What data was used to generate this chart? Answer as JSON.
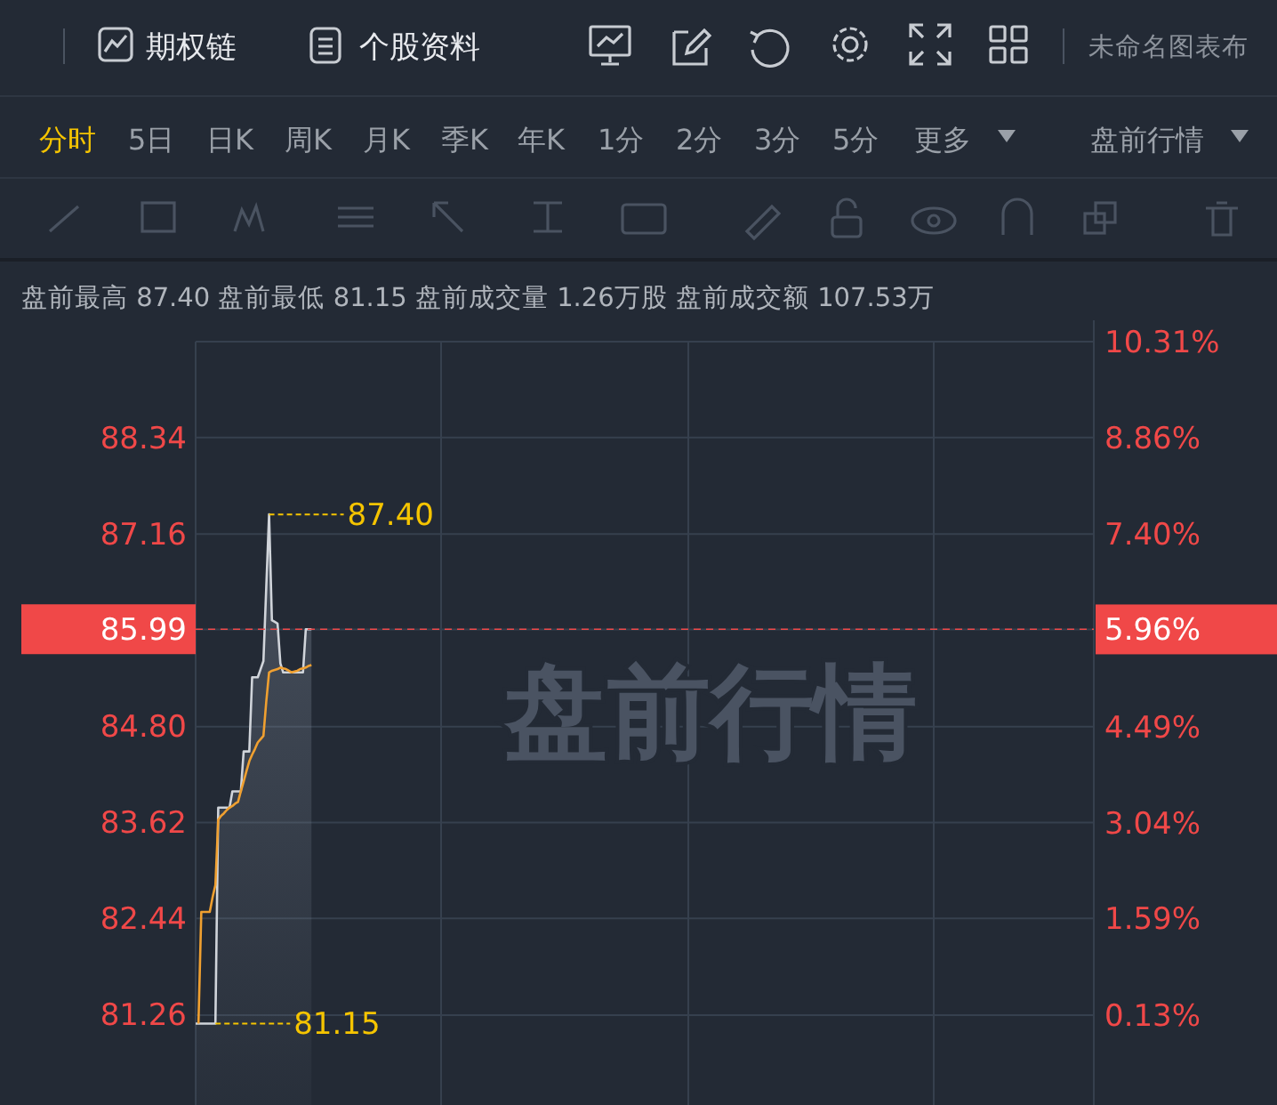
{
  "chart_data": [
    {
      "type": "other",
      "annotations": [
        "期权链",
        "个股资料",
        "未命名图表布",
        "分时",
        "5日",
        "日K",
        "周K",
        "月K",
        "季K",
        "年K",
        "1分",
        "2分",
        "3分",
        "5分",
        "更多",
        "盘前行情"
      ]
    },
    {
      "type": "line",
      "title": "盘前行情",
      "subtitle": "盘前最高 87.40 盘前最低 81.15 盘前成交量 1.26万股 盘前成交额 107.53万",
      "categories": [
        null,
        null,
        null,
        null,
        null,
        null,
        null,
        null,
        null,
        null,
        null,
        null,
        null,
        null,
        null,
        null,
        null,
        null,
        null,
        null,
        null,
        null,
        null,
        null,
        null,
        null,
        null,
        null,
        null,
        null,
        null,
        null,
        null,
        null,
        null,
        null,
        null,
        null,
        null,
        null,
        null,
        null,
        null,
        null,
        null,
        null,
        null,
        null,
        null,
        null,
        null,
        null,
        null,
        null,
        null,
        null,
        null,
        null,
        null,
        null,
        null,
        null,
        null,
        null,
        null,
        null,
        null,
        null,
        null,
        null,
        null,
        null,
        null,
        null,
        null,
        null,
        null,
        null,
        null,
        null,
        null,
        null,
        null,
        null,
        null,
        null,
        null,
        null,
        null,
        null,
        null,
        null,
        null,
        null,
        null,
        null,
        null,
        null,
        null,
        null,
        null,
        null,
        null,
        null,
        null,
        null,
        null,
        null,
        null,
        null,
        null,
        null,
        null,
        null,
        null,
        null,
        null,
        null,
        null,
        null,
        null,
        null,
        null,
        null,
        null,
        null,
        null,
        null,
        null,
        null,
        null,
        null,
        null,
        null,
        null,
        null,
        null,
        null,
        null,
        null,
        null,
        null,
        null,
        null,
        null,
        null,
        null,
        null,
        null,
        null,
        null,
        null,
        null,
        null,
        null,
        null,
        null,
        null,
        null,
        null,
        null,
        null,
        null,
        null,
        null,
        null,
        null,
        null,
        null,
        null,
        null,
        null,
        null,
        null,
        null,
        null,
        null,
        null,
        null,
        null,
        null,
        null,
        null,
        null,
        null,
        null,
        null,
        null,
        null,
        null,
        null,
        null,
        null,
        null,
        null,
        null,
        null,
        null,
        null,
        null,
        null,
        null,
        null,
        null,
        null,
        null,
        null,
        null,
        null,
        null,
        null,
        null,
        null,
        null,
        null,
        null,
        null,
        null,
        null,
        null,
        null,
        null,
        null,
        null,
        null,
        null,
        null,
        null,
        null,
        null,
        null,
        null,
        null,
        null,
        null,
        null,
        null,
        null,
        null,
        null,
        null,
        null,
        null,
        null,
        null,
        null,
        null,
        null,
        null,
        null,
        null,
        null,
        null,
        null,
        null,
        null,
        null,
        null,
        null,
        null,
        null,
        null,
        null,
        null,
        null,
        null,
        null,
        null,
        null,
        null,
        null,
        null,
        null,
        null,
        null,
        null,
        null,
        null,
        null,
        null,
        null,
        null,
        null,
        null,
        null,
        null,
        null,
        null,
        null,
        null,
        null,
        null,
        null,
        null,
        null,
        null,
        null,
        null,
        null,
        null,
        null,
        null,
        null,
        null,
        null,
        null,
        null,
        null,
        null,
        null,
        null,
        null,
        null,
        null,
        null,
        null,
        null,
        null
      ],
      "ylim": [
        80.15,
        89.52
      ],
      "yticks": [
        {
          "value": 81.26,
          "label": "81.26"
        },
        {
          "value": 82.44,
          "label": "82.44"
        },
        {
          "value": 83.62,
          "label": "83.62"
        },
        {
          "value": 84.8,
          "label": "84.80"
        },
        {
          "value": 85.99,
          "label": "85.99"
        },
        {
          "value": 87.16,
          "label": "87.16"
        },
        {
          "value": 88.34,
          "label": "88.34"
        }
      ],
      "y2lim": [
        -1.23,
        10.31
      ],
      "y2ticks": [
        {
          "value": 0.13,
          "label": "0.13%"
        },
        {
          "value": 1.59,
          "label": "1.59%"
        },
        {
          "value": 3.04,
          "label": "3.04%"
        },
        {
          "value": 4.49,
          "label": "4.49%"
        },
        {
          "value": 5.96,
          "label": "5.96%"
        },
        {
          "value": 7.4,
          "label": "7.40%"
        },
        {
          "value": 8.86,
          "label": "8.86%"
        },
        {
          "value": 10.31,
          "label": "10.31%"
        }
      ],
      "grid": true,
      "marker": "none",
      "series": [
        {
          "type": "area",
          "color": "#d0d4da",
          "values": [
            81.15,
            81.15,
            81.15,
            81.15,
            81.15,
            81.15,
            81.15,
            81.15,
            83.8,
            83.8,
            83.8,
            83.8,
            83.8,
            84.0,
            84.0,
            84.0,
            84.0,
            84.49,
            84.49,
            84.49,
            85.4,
            85.4,
            85.4,
            85.5,
            85.6,
            86.5,
            87.4,
            86.1,
            86.08,
            86.06,
            85.57,
            85.46,
            85.46,
            85.46,
            85.46,
            85.46,
            85.46,
            85.46,
            85.46,
            85.99,
            85.99,
            85.99,
            null,
            null,
            null,
            null,
            null,
            null,
            null,
            null,
            null,
            null,
            null,
            null,
            null,
            null,
            null,
            null,
            null,
            null,
            null,
            null,
            null,
            null,
            null,
            null,
            null,
            null,
            null,
            null,
            null,
            null,
            null,
            null,
            null,
            null,
            null,
            null,
            null,
            null,
            null,
            null,
            null,
            null,
            null,
            null,
            null,
            null,
            null,
            null,
            null,
            null,
            null,
            null,
            null,
            null,
            null,
            null,
            null,
            null,
            null,
            null,
            null,
            null,
            null,
            null,
            null,
            null,
            null,
            null,
            null,
            null,
            null,
            null,
            null,
            null,
            null,
            null,
            null,
            null,
            null,
            null,
            null,
            null,
            null,
            null,
            null,
            null,
            null,
            null,
            null,
            null,
            null,
            null,
            null,
            null,
            null,
            null,
            null,
            null,
            null,
            null,
            null,
            null,
            null,
            null,
            null,
            null,
            null,
            null,
            null,
            null,
            null,
            null,
            null,
            null,
            null,
            null,
            null,
            null,
            null,
            null,
            null,
            null,
            null,
            null,
            null,
            null,
            null,
            null,
            null,
            null,
            null,
            null,
            null,
            null,
            null,
            null,
            null,
            null,
            null,
            null,
            null,
            null,
            null,
            null,
            null,
            null,
            null,
            null,
            null,
            null,
            null,
            null,
            null,
            null,
            null,
            null,
            null,
            null,
            null,
            null,
            null,
            null,
            null,
            null,
            null,
            null,
            null,
            null,
            null,
            null,
            null,
            null,
            null,
            null,
            null,
            null,
            null,
            null,
            null,
            null,
            null,
            null,
            null,
            null,
            null,
            null,
            null,
            null,
            null,
            null,
            null,
            null,
            null,
            null,
            null,
            null,
            null,
            null,
            null,
            null,
            null,
            null,
            null,
            null,
            null,
            null,
            null,
            null,
            null,
            null,
            null,
            null,
            null,
            null,
            null,
            null,
            null,
            null,
            null,
            null,
            null,
            null,
            null,
            null,
            null,
            null,
            null,
            null,
            null,
            null,
            null,
            null,
            null,
            null,
            null,
            null,
            null,
            null,
            null,
            null,
            null,
            null,
            null,
            null,
            null,
            null,
            null,
            null,
            null,
            null,
            null,
            null,
            null,
            null,
            null,
            null,
            null,
            null,
            null,
            null,
            null,
            null,
            null,
            null,
            null,
            null,
            null,
            null,
            null,
            null,
            null,
            null,
            null,
            null,
            null,
            null
          ]
        },
        {
          "type": "line",
          "color": "#f0a030",
          "values": [
            null,
            81.15,
            82.52,
            82.52,
            82.52,
            82.52,
            82.7,
            82.85,
            83.65,
            83.7,
            83.73,
            83.77,
            83.8,
            83.82,
            83.85,
            83.87,
            84.0,
            84.12,
            84.25,
            84.37,
            84.45,
            84.52,
            84.6,
            84.64,
            84.68,
            85.1,
            85.46,
            85.48,
            85.49,
            85.5,
            85.52,
            85.51,
            85.5,
            85.48,
            85.46,
            85.47,
            85.48,
            85.5,
            85.51,
            85.52,
            85.54,
            85.55,
            null,
            null,
            null,
            null,
            null,
            null,
            null,
            null,
            null,
            null,
            null,
            null,
            null,
            null,
            null,
            null,
            null,
            null,
            null,
            null,
            null,
            null,
            null,
            null,
            null,
            null,
            null,
            null,
            null,
            null,
            null,
            null,
            null,
            null,
            null,
            null,
            null,
            null,
            null,
            null,
            null,
            null,
            null,
            null,
            null,
            null,
            null,
            null,
            null,
            null,
            null,
            null,
            null,
            null,
            null,
            null,
            null,
            null,
            null,
            null,
            null,
            null,
            null,
            null,
            null,
            null,
            null,
            null,
            null,
            null,
            null,
            null,
            null,
            null,
            null,
            null,
            null,
            null,
            null,
            null,
            null,
            null,
            null,
            null,
            null,
            null,
            null,
            null,
            null,
            null,
            null,
            null,
            null,
            null,
            null,
            null,
            null,
            null,
            null,
            null,
            null,
            null,
            null,
            null,
            null,
            null,
            null,
            null,
            null,
            null,
            null,
            null,
            null,
            null,
            null,
            null,
            null,
            null,
            null,
            null,
            null,
            null,
            null,
            null,
            null,
            null,
            null,
            null,
            null,
            null,
            null,
            null,
            null,
            null,
            null,
            null,
            null,
            null,
            null,
            null,
            null,
            null,
            null,
            null,
            null,
            null,
            null,
            null,
            null,
            null,
            null,
            null,
            null,
            null,
            null,
            null,
            null,
            null,
            null,
            null,
            null,
            null,
            null,
            null,
            null,
            null,
            null,
            null,
            null,
            null,
            null,
            null,
            null,
            null,
            null,
            null,
            null,
            null,
            null,
            null,
            null,
            null,
            null,
            null,
            null,
            null,
            null,
            null,
            null,
            null,
            null,
            null,
            null,
            null,
            null,
            null,
            null,
            null,
            null,
            null,
            null,
            null,
            null,
            null,
            null,
            null,
            null,
            null,
            null,
            null,
            null,
            null,
            null,
            null,
            null,
            null,
            null,
            null,
            null,
            null,
            null,
            null,
            null,
            null,
            null,
            null,
            null,
            null,
            null,
            null,
            null,
            null,
            null,
            null,
            null,
            null,
            null,
            null,
            null,
            null,
            null,
            null,
            null,
            null,
            null,
            null,
            null,
            null,
            null,
            null,
            null,
            null,
            null,
            null,
            null,
            null,
            null,
            null,
            null,
            null,
            null,
            null,
            null,
            null,
            null,
            null,
            null,
            null,
            null,
            null,
            null,
            null,
            null,
            null,
            null,
            null
          ]
        }
      ],
      "ref_lines": [
        {
          "axis": "y",
          "value": 85.99,
          "color": "#f04848",
          "line_style": "dashed"
        }
      ],
      "annotations": [
        "87.40",
        "81.15"
      ]
    }
  ]
}
